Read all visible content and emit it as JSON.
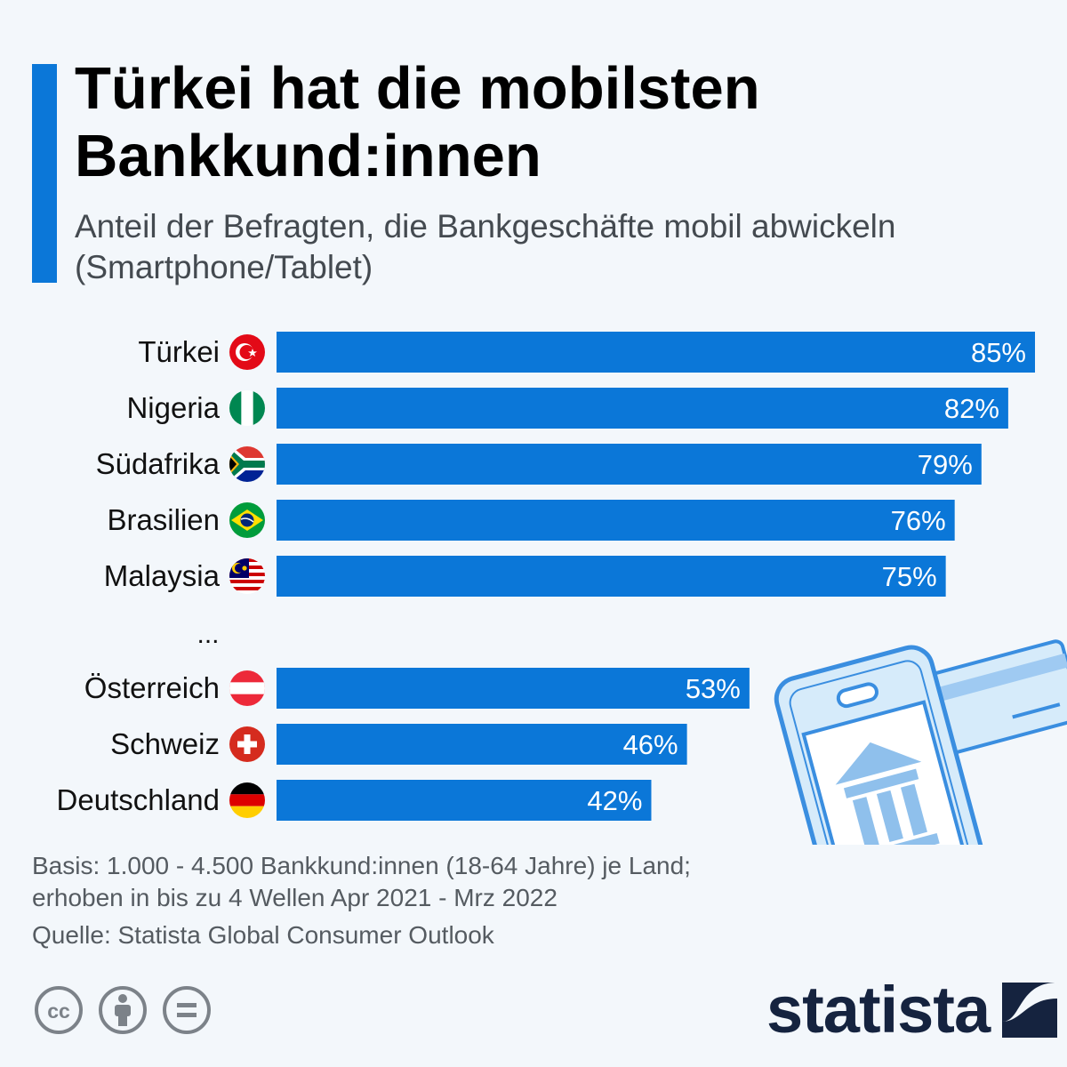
{
  "header": {
    "title": "Türkei hat die mobilsten Bankkund:innen",
    "subtitle": "Anteil der Befragten, die Bankgeschäfte mobil abwickeln (Smartphone/Tablet)"
  },
  "chart_data": {
    "type": "bar",
    "orientation": "horizontal",
    "categories": [
      "Türkei",
      "Nigeria",
      "Südafrika",
      "Brasilien",
      "Malaysia",
      "Österreich",
      "Schweiz",
      "Deutschland"
    ],
    "values": [
      85,
      82,
      79,
      76,
      75,
      53,
      46,
      42
    ],
    "value_labels": [
      "85%",
      "82%",
      "79%",
      "76%",
      "75%",
      "53%",
      "46%",
      "42%"
    ],
    "gap_label": "...",
    "gap_after_index": 4,
    "flags": [
      "flag-turkey-icon",
      "flag-nigeria-icon",
      "flag-south-africa-icon",
      "flag-brazil-icon",
      "flag-malaysia-icon",
      "flag-austria-icon",
      "flag-switzerland-icon",
      "flag-germany-icon"
    ],
    "bar_color": "#0b77d8",
    "xlim": [
      0,
      85
    ],
    "grid": false,
    "legend": "none"
  },
  "footer": {
    "basis": "Basis: 1.000 - 4.500 Bankkund:innen (18-64 Jahre) je Land; erhoben in bis zu 4 Wellen Apr 2021 - Mrz 2022",
    "source": "Quelle: Statista Global Consumer Outlook",
    "license_icons": [
      "cc-icon",
      "attribution-icon",
      "no-derivatives-icon"
    ],
    "brand": "statista"
  },
  "illustration": {
    "icon": "mobile-banking-icon"
  },
  "colors": {
    "accent": "#0b77d8",
    "background": "#f3f7fb",
    "brand_navy": "#15233f"
  }
}
